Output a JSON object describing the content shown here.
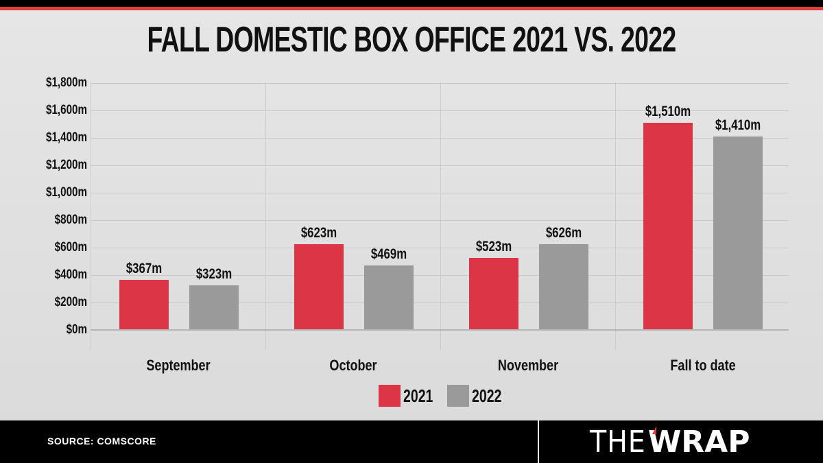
{
  "header": {
    "title": "FALL DOMESTIC BOX OFFICE 2021 VS. 2022"
  },
  "colors": {
    "series_2021": "#dc3546",
    "series_2022": "#9a9a9a",
    "accent_red": "#e23a3a",
    "footer_bg": "#000000"
  },
  "y_axis": {
    "ticks": [
      "$0m",
      "$200m",
      "$400m",
      "$600m",
      "$800m",
      "$1,000m",
      "$1,200m",
      "$1,400m",
      "$1,600m",
      "$1,800m"
    ]
  },
  "categories": [
    "September",
    "October",
    "November",
    "Fall to date"
  ],
  "bar_labels": {
    "s2021": [
      "$367m",
      "$623m",
      "$523m",
      "$1,510m"
    ],
    "s2022": [
      "$323m",
      "$469m",
      "$626m",
      "$1,410m"
    ]
  },
  "legend": {
    "items": [
      {
        "label": "2021",
        "color": "#dc3546"
      },
      {
        "label": "2022",
        "color": "#9a9a9a"
      }
    ]
  },
  "footer": {
    "source": "SOURCE: COMSCORE",
    "logo_the": "THE",
    "logo_wrap": "WRAP"
  },
  "chart_data": {
    "type": "bar",
    "title": "FALL DOMESTIC BOX OFFICE 2021 VS. 2022",
    "categories": [
      "September",
      "October",
      "November",
      "Fall to date"
    ],
    "series": [
      {
        "name": "2021",
        "color": "#dc3546",
        "values": [
          367,
          623,
          523,
          1510
        ]
      },
      {
        "name": "2022",
        "color": "#9a9a9a",
        "values": [
          323,
          469,
          626,
          1410
        ]
      }
    ],
    "xlabel": "",
    "ylabel": "",
    "units": "$ millions",
    "ylim": [
      0,
      1800
    ],
    "y_tick_step": 200,
    "grid": true,
    "legend_position": "bottom",
    "source": "SOURCE: COMSCORE"
  }
}
